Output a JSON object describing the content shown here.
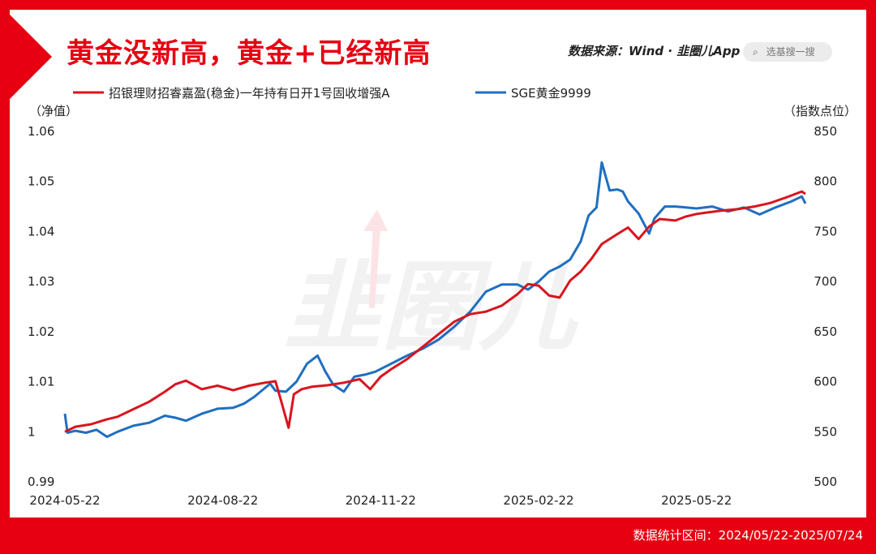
{
  "header": {
    "title": "黄金没新高，黄金+已经新高",
    "source": "数据来源：Wind · 韭圈儿App",
    "search_placeholder": "选基搜一搜",
    "search_icon": "search-icon"
  },
  "footer": {
    "period": "数据统计区间：2024/05/22-2025/07/24"
  },
  "colors": {
    "brand": "#E60012",
    "fund": "#D9141E",
    "gold": "#1F6FBF"
  },
  "chart_data": {
    "type": "line",
    "left_axis": {
      "unit_label": "（净值）",
      "ticks": [
        "1.06",
        "1.05",
        "1.04",
        "1.03",
        "1.02",
        "1.01",
        "1",
        "0.99"
      ],
      "ylim": [
        0.99,
        1.06
      ]
    },
    "right_axis": {
      "unit_label": "（指数点位）",
      "ticks": [
        "850",
        "800",
        "750",
        "700",
        "650",
        "600",
        "550",
        "500"
      ],
      "ylim": [
        500,
        850
      ]
    },
    "x_ticks": [
      "2024-05-22",
      "2024-08-22",
      "2024-11-22",
      "2025-02-22",
      "2025-05-22"
    ],
    "x_tick_months": [
      0,
      3,
      6,
      9,
      12
    ],
    "x_range_months": [
      0,
      14.07
    ],
    "series": [
      {
        "name": "招银理财招睿嘉盈(稳金)一年持有日开1号固收增强A",
        "axis": "left",
        "x": [
          0,
          0.2,
          0.5,
          0.8,
          1.0,
          1.3,
          1.6,
          1.9,
          2.1,
          2.3,
          2.6,
          2.9,
          3.2,
          3.5,
          3.8,
          4.0,
          4.1,
          4.25,
          4.35,
          4.5,
          4.7,
          5.0,
          5.3,
          5.6,
          5.8,
          6.0,
          6.2,
          6.5,
          6.8,
          7.1,
          7.4,
          7.7,
          8.0,
          8.3,
          8.6,
          8.8,
          9.0,
          9.2,
          9.4,
          9.6,
          9.8,
          10.0,
          10.2,
          10.5,
          10.7,
          10.9,
          11.1,
          11.3,
          11.6,
          11.8,
          12.0,
          12.2,
          12.5,
          12.8,
          13.1,
          13.4,
          13.7,
          14.0,
          14.07
        ],
        "y": [
          1.0,
          1.001,
          1.0015,
          1.0025,
          1.003,
          1.0045,
          1.006,
          1.008,
          1.0095,
          1.0102,
          1.0085,
          1.0092,
          1.0083,
          1.0092,
          1.0098,
          1.0101,
          1.0065,
          1.0008,
          1.0075,
          1.0085,
          1.009,
          1.0093,
          1.0098,
          1.0105,
          1.0085,
          1.011,
          1.0125,
          1.0145,
          1.017,
          1.0195,
          1.022,
          1.0235,
          1.024,
          1.0252,
          1.0275,
          1.0295,
          1.0292,
          1.0272,
          1.0268,
          1.0302,
          1.032,
          1.0345,
          1.0375,
          1.0395,
          1.0408,
          1.0385,
          1.041,
          1.0425,
          1.0422,
          1.043,
          1.0435,
          1.0438,
          1.0442,
          1.0445,
          1.045,
          1.0457,
          1.0468,
          1.048,
          1.0475
        ]
      },
      {
        "name": "SGE黄金9999",
        "axis": "right",
        "x": [
          0,
          0.05,
          0.2,
          0.4,
          0.6,
          0.8,
          1.0,
          1.3,
          1.6,
          1.9,
          2.1,
          2.3,
          2.6,
          2.9,
          3.2,
          3.4,
          3.6,
          3.9,
          4.0,
          4.2,
          4.4,
          4.6,
          4.8,
          4.95,
          5.1,
          5.3,
          5.5,
          5.7,
          5.9,
          6.2,
          6.5,
          6.8,
          7.1,
          7.4,
          7.7,
          8.0,
          8.3,
          8.6,
          8.8,
          9.0,
          9.2,
          9.4,
          9.6,
          9.8,
          9.95,
          10.1,
          10.2,
          10.35,
          10.5,
          10.6,
          10.7,
          10.9,
          11.1,
          11.2,
          11.4,
          11.6,
          11.8,
          12.0,
          12.3,
          12.6,
          12.9,
          13.2,
          13.5,
          13.8,
          14.0,
          14.07
        ],
        "y": [
          568,
          549,
          551,
          549,
          552,
          545,
          550,
          556,
          559,
          566,
          564,
          561,
          568,
          573,
          574,
          578,
          585,
          598,
          591,
          590,
          600,
          618,
          626,
          610,
          597,
          590,
          605,
          607,
          610,
          618,
          626,
          633,
          642,
          655,
          670,
          690,
          697,
          697,
          692,
          700,
          710,
          715,
          722,
          740,
          766,
          774,
          819,
          791,
          792,
          790,
          780,
          768,
          748,
          763,
          775,
          775,
          774,
          773,
          775,
          770,
          774,
          767,
          774,
          780,
          785,
          778
        ]
      }
    ],
    "watermark": "韭圈儿"
  }
}
